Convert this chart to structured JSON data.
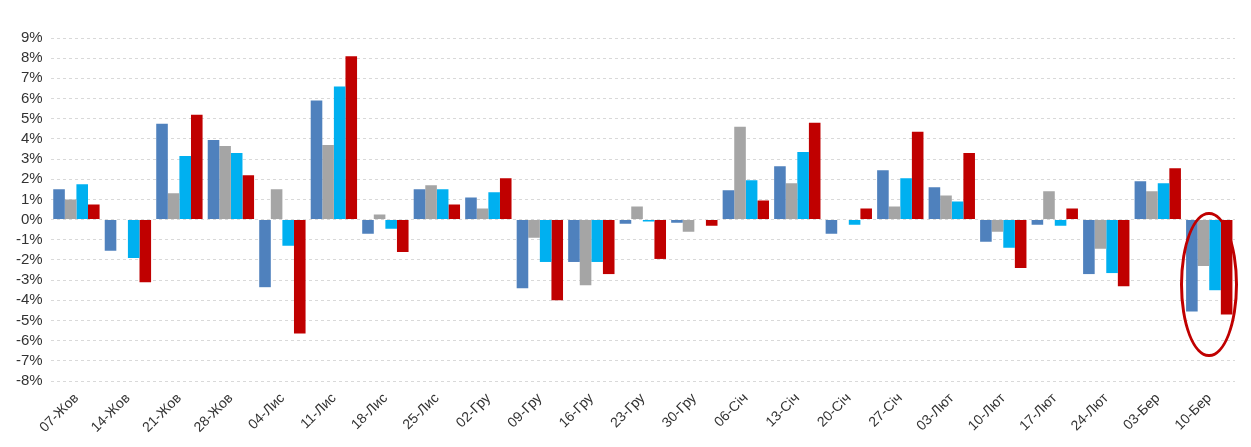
{
  "chart_data": {
    "type": "bar",
    "categories": [
      "07-Жов",
      "14-Жов",
      "21-Жов",
      "28-Жов",
      "04-Лис",
      "11-Лис",
      "18-Лис",
      "25-Лис",
      "02-Гру",
      "09-Гру",
      "16-Гру",
      "23-Гру",
      "30-Гру",
      "06-Січ",
      "13-Січ",
      "20-Січ",
      "27-Січ",
      "03-Лют",
      "10-Лют",
      "17-Лют",
      "24-Лют",
      "03-Бер",
      "10-Бер"
    ],
    "series": [
      {
        "color": "#4f81bd",
        "values": [
          1.5,
          -1.55,
          4.75,
          3.95,
          -3.35,
          5.9,
          -0.7,
          1.5,
          1.1,
          -3.4,
          -2.1,
          -0.2,
          -0.15,
          1.45,
          2.65,
          -0.7,
          2.45,
          1.6,
          -1.1,
          -0.25,
          -2.7,
          1.9,
          -4.55
        ]
      },
      {
        "color": "#a5a5a5",
        "values": [
          1.0,
          null,
          1.3,
          3.65,
          1.5,
          3.7,
          0.25,
          1.7,
          0.55,
          -0.9,
          -3.25,
          0.65,
          -0.6,
          4.6,
          1.8,
          null,
          0.65,
          1.2,
          -0.6,
          1.4,
          -1.45,
          1.4,
          -2.3
        ]
      },
      {
        "color": "#00b0f0",
        "values": [
          1.75,
          -1.9,
          3.15,
          3.3,
          -1.3,
          6.6,
          -0.45,
          1.5,
          1.35,
          -2.1,
          -2.1,
          -0.1,
          0,
          1.95,
          3.35,
          -0.25,
          2.05,
          0.9,
          -1.4,
          -0.3,
          -2.65,
          1.8,
          -3.5
        ]
      },
      {
        "color": "#c00000",
        "values": [
          0.75,
          -3.1,
          5.2,
          2.2,
          -5.65,
          8.1,
          -1.6,
          0.75,
          2.05,
          -4.0,
          -2.7,
          -1.95,
          -0.3,
          0.95,
          4.8,
          0.55,
          4.35,
          3.3,
          -2.4,
          0.55,
          -3.3,
          2.55,
          -4.7
        ]
      }
    ],
    "ylim": [
      -8,
      9
    ],
    "yticks": [
      {
        "value": -8,
        "label": "-8%"
      },
      {
        "value": -7,
        "label": "-7%"
      },
      {
        "value": -6,
        "label": "-6%"
      },
      {
        "value": -5,
        "label": "-5%"
      },
      {
        "value": -4,
        "label": "-4%"
      },
      {
        "value": -3,
        "label": "-3%"
      },
      {
        "value": -2,
        "label": "-2%"
      },
      {
        "value": -1,
        "label": "-1%"
      },
      {
        "value": 0,
        "label": "0%"
      },
      {
        "value": 1,
        "label": "1%"
      },
      {
        "value": 2,
        "label": "2%"
      },
      {
        "value": 3,
        "label": "3%"
      },
      {
        "value": 4,
        "label": "4%"
      },
      {
        "value": 5,
        "label": "5%"
      },
      {
        "value": 6,
        "label": "6%"
      },
      {
        "value": 7,
        "label": "7%"
      },
      {
        "value": 8,
        "label": "8%"
      },
      {
        "value": 9,
        "label": "9%"
      }
    ],
    "grid": "y"
  }
}
